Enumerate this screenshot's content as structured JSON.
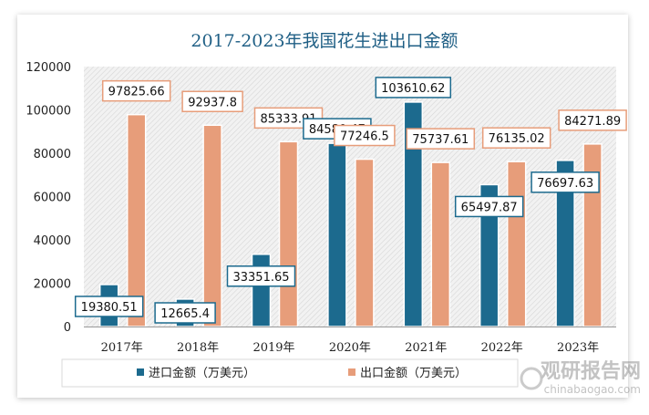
{
  "chart_data": {
    "type": "bar",
    "title": "2017-2023年我国花生进出口金额",
    "categories": [
      "2017年",
      "2018年",
      "2019年",
      "2020年",
      "2021年",
      "2022年",
      "2023年"
    ],
    "series": [
      {
        "name": "进口金额（万美元）",
        "color": "#1c6a8e",
        "values": [
          19380.51,
          12665.4,
          33351.65,
          84580.47,
          103610.62,
          65497.87,
          76697.63
        ],
        "labels": [
          "19380.51",
          "12665.4",
          "33351.65",
          "84580.47",
          "103610.62",
          "65497.87",
          "76697.63"
        ]
      },
      {
        "name": "出口金额（万美元）",
        "color": "#e79d7a",
        "values": [
          97825.66,
          92937.8,
          85333.91,
          77246.5,
          75737.61,
          76135.02,
          84271.89
        ],
        "labels": [
          "97825.66",
          "92937.8",
          "85333.91",
          "77246.5",
          "75737.61",
          "76135.02",
          "84271.89"
        ]
      }
    ],
    "yticks": [
      "0",
      "20000",
      "40000",
      "60000",
      "80000",
      "100000",
      "120000"
    ],
    "ylim": [
      0,
      120000
    ],
    "xlabel": "",
    "ylabel": "",
    "legend": "bottom",
    "title_color": "#1f5f85"
  },
  "watermark": {
    "brand": "观研报告网",
    "url": "chinabaogao.com"
  }
}
